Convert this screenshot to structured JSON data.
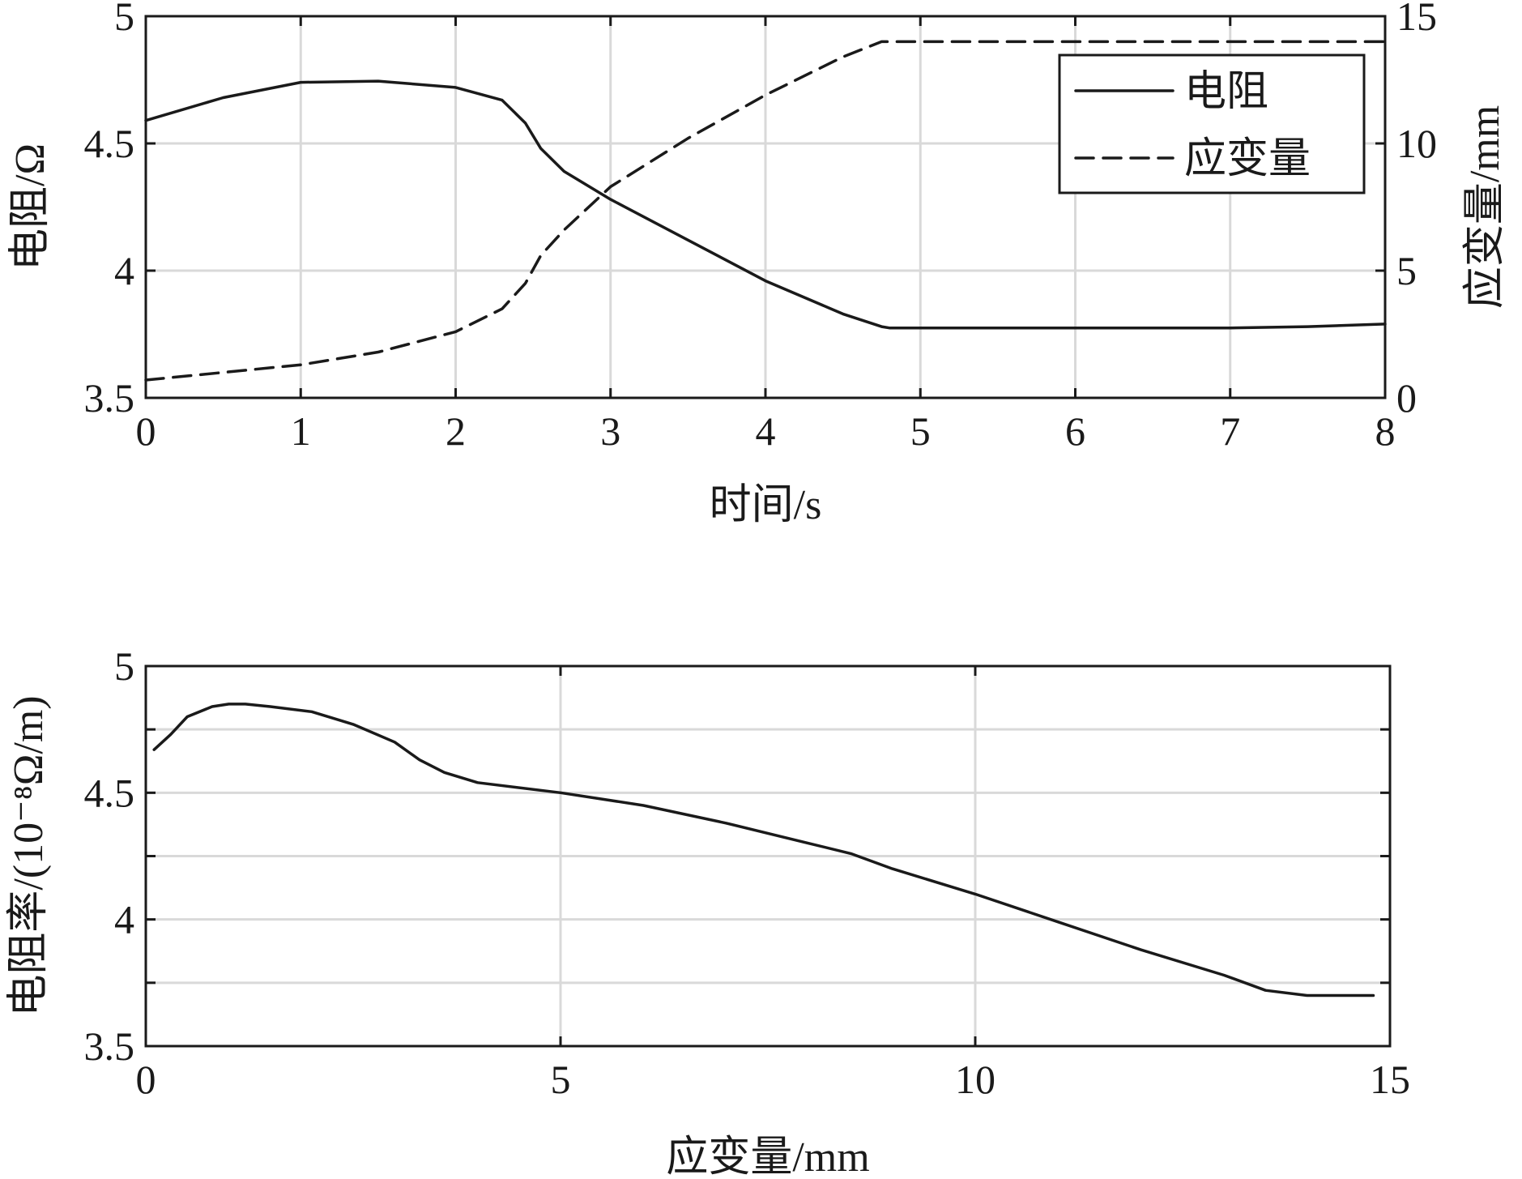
{
  "chart_data": [
    {
      "type": "line",
      "xlabel": "时间/s",
      "ylabel": "电阻/Ω",
      "y2label": "应变量/mm",
      "xlim": [
        0,
        8
      ],
      "ylim": [
        3.5,
        5
      ],
      "y2lim": [
        0,
        15
      ],
      "xticks": [
        "0",
        "1",
        "2",
        "3",
        "4",
        "5",
        "6",
        "7",
        "8"
      ],
      "yticks": [
        "3.5",
        "4",
        "4.5",
        "5"
      ],
      "y2ticks": [
        "0",
        "5",
        "10",
        "15"
      ],
      "grid": true,
      "legend_position": "top-right",
      "series": [
        {
          "name": "电阻",
          "axis": "left",
          "style": "solid",
          "x": [
            0,
            0.5,
            1.0,
            1.5,
            2.0,
            2.3,
            2.45,
            2.55,
            2.7,
            3.0,
            3.5,
            4.0,
            4.5,
            4.75,
            4.8,
            5.0,
            6.0,
            7.0,
            7.5,
            8.0
          ],
          "y": [
            4.59,
            4.68,
            4.74,
            4.745,
            4.72,
            4.67,
            4.58,
            4.48,
            4.39,
            4.28,
            4.12,
            3.96,
            3.83,
            3.78,
            3.775,
            3.775,
            3.775,
            3.775,
            3.78,
            3.79
          ]
        },
        {
          "name": "应变量",
          "axis": "right",
          "style": "dashed",
          "x": [
            0,
            0.5,
            1.0,
            1.5,
            2.0,
            2.3,
            2.45,
            2.55,
            2.7,
            3.0,
            3.5,
            4.0,
            4.5,
            4.75,
            4.8,
            5.0,
            6.0,
            7.0,
            8.0
          ],
          "y": [
            0.7,
            1.0,
            1.3,
            1.8,
            2.6,
            3.5,
            4.5,
            5.6,
            6.6,
            8.3,
            10.2,
            11.9,
            13.4,
            14.0,
            14.0,
            14.0,
            14.0,
            14.0,
            14.0
          ]
        }
      ]
    },
    {
      "type": "line",
      "xlabel": "应变量/mm",
      "ylabel": "电阻率/(10⁻⁸Ω/m)",
      "xlim": [
        0,
        15
      ],
      "ylim": [
        3.5,
        5
      ],
      "xticks": [
        "0",
        "5",
        "10",
        "15"
      ],
      "yticks": [
        "3.5",
        "4",
        "4.5",
        "5"
      ],
      "grid": true,
      "series": [
        {
          "x": [
            0.1,
            0.3,
            0.5,
            0.8,
            1.0,
            1.2,
            1.5,
            2.0,
            2.5,
            3.0,
            3.3,
            3.6,
            4.0,
            5.0,
            6.0,
            7.0,
            7.5,
            8.0,
            8.5,
            9.0,
            10.0,
            11.0,
            12.0,
            13.0,
            13.5,
            14.0,
            14.8
          ],
          "y": [
            4.67,
            4.73,
            4.8,
            4.84,
            4.85,
            4.85,
            4.84,
            4.82,
            4.77,
            4.7,
            4.63,
            4.58,
            4.54,
            4.5,
            4.45,
            4.38,
            4.34,
            4.3,
            4.26,
            4.2,
            4.1,
            3.99,
            3.88,
            3.78,
            3.72,
            3.7,
            3.7
          ]
        }
      ]
    }
  ]
}
